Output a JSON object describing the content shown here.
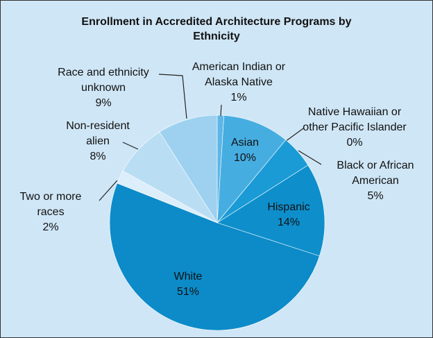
{
  "chart_data": {
    "type": "pie",
    "title": "Enrollment in Accredited Architecture Programs by Ethnicity",
    "categories": [
      "American Indian or Alaska Native",
      "Asian",
      "Native Hawaiian or other Pacific Islander",
      "Black or African American",
      "Hispanic",
      "White",
      "Two or more races",
      "Non-resident alien",
      "Race and ethnicity unknown"
    ],
    "values": [
      1,
      10,
      0,
      5,
      14,
      51,
      2,
      8,
      9
    ],
    "value_labels": [
      "1%",
      "10%",
      "0%",
      "5%",
      "14%",
      "51%",
      "2%",
      "8%",
      "9%"
    ],
    "colors": [
      "#5cb6e6",
      "#46ade1",
      "#2aa3da",
      "#1a9bd6",
      "#0e8fcc",
      "#0c8bc8",
      "#dbeefa",
      "#b9def4",
      "#9ed1f0"
    ]
  }
}
